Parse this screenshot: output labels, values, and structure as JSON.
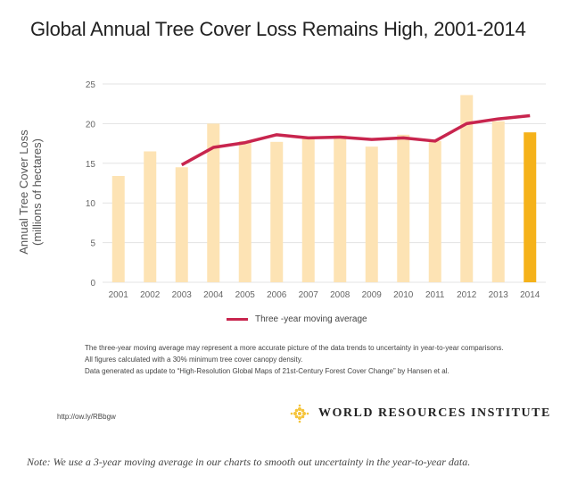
{
  "chart_data": {
    "type": "bar",
    "title": "Global Annual Tree Cover Loss Remains High, 2001-2014",
    "ylabel_line1": "Annual Tree Cover Loss",
    "ylabel_line2": "(millions of hectares)",
    "xlabel": "",
    "ylim": [
      0,
      25
    ],
    "yticks": [
      "0",
      "5",
      "10",
      "15",
      "20",
      "25"
    ],
    "grid": true,
    "categories": [
      "2001",
      "2002",
      "2003",
      "2004",
      "2005",
      "2006",
      "2007",
      "2008",
      "2009",
      "2010",
      "2011",
      "2012",
      "2013",
      "2014"
    ],
    "series": [
      {
        "name": "Annual tree cover loss",
        "type": "bar",
        "values": [
          13.4,
          16.5,
          14.5,
          20.0,
          17.8,
          17.7,
          18.2,
          18.5,
          17.1,
          18.6,
          17.8,
          23.6,
          20.3,
          18.9
        ]
      },
      {
        "name": "Three -year moving average",
        "type": "line",
        "values": [
          null,
          null,
          14.8,
          17.0,
          17.6,
          18.6,
          18.2,
          18.3,
          18.0,
          18.2,
          17.8,
          20.0,
          20.6,
          21.0
        ]
      }
    ],
    "highlight_category": "2014",
    "legend_position": "bottom",
    "colors": {
      "bar": "#fde3b4",
      "highlight": "#f5b21a",
      "line": "#c8254e",
      "grid": "#e3e3e3"
    }
  },
  "notes": [
    "The three-year moving average may represent a more accurate picture of the data trends to uncertainty in year-to-year comparisons.",
    "All figures calculated with a 30% minimum tree cover canopy density.",
    "Data generated as update to “High-Resolution Global Maps of 21st-Century Forest Cover Change” by Hansen et al."
  ],
  "url": "http://ow.ly/RBbgw",
  "brand": "WORLD RESOURCES INSTITUTE",
  "footnote": "Note: We use a 3-year moving average in our charts to smooth out uncertainty in the year-to-year data."
}
